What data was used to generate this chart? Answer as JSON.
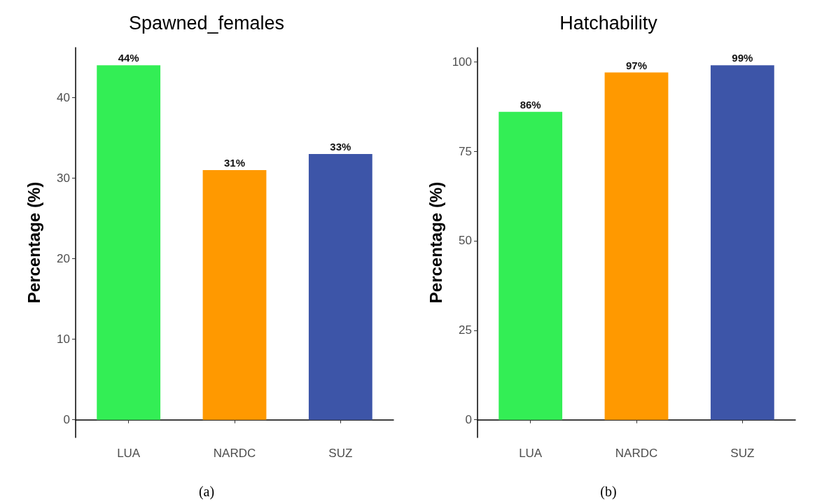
{
  "chart_data": [
    {
      "type": "bar",
      "title": "Spawned_females",
      "ylabel": "Percentage (%)",
      "categories": [
        "LUA",
        "NARDC",
        "SUZ"
      ],
      "values": [
        44,
        31,
        33
      ],
      "colors": [
        "#33ee55",
        "#ff9900",
        "#3d55a8"
      ],
      "value_labels": [
        "44%",
        "31%",
        "33%"
      ],
      "ylim": [
        -2.2,
        46.2
      ],
      "yticks": [
        0,
        10,
        20,
        30,
        40
      ],
      "grid": false,
      "annotations": [
        "(a)"
      ]
    },
    {
      "type": "bar",
      "title": "Hatchability",
      "ylabel": "Percentage (%)",
      "categories": [
        "LUA",
        "NARDC",
        "SUZ"
      ],
      "values": [
        86,
        97,
        99
      ],
      "colors": [
        "#33ee55",
        "#ff9900",
        "#3d55a8"
      ],
      "value_labels": [
        "86%",
        "97%",
        "99%"
      ],
      "ylim": [
        -4.95,
        103.95
      ],
      "yticks": [
        0,
        25,
        50,
        75,
        100
      ],
      "grid": false,
      "annotations": [
        "(b)"
      ]
    }
  ]
}
